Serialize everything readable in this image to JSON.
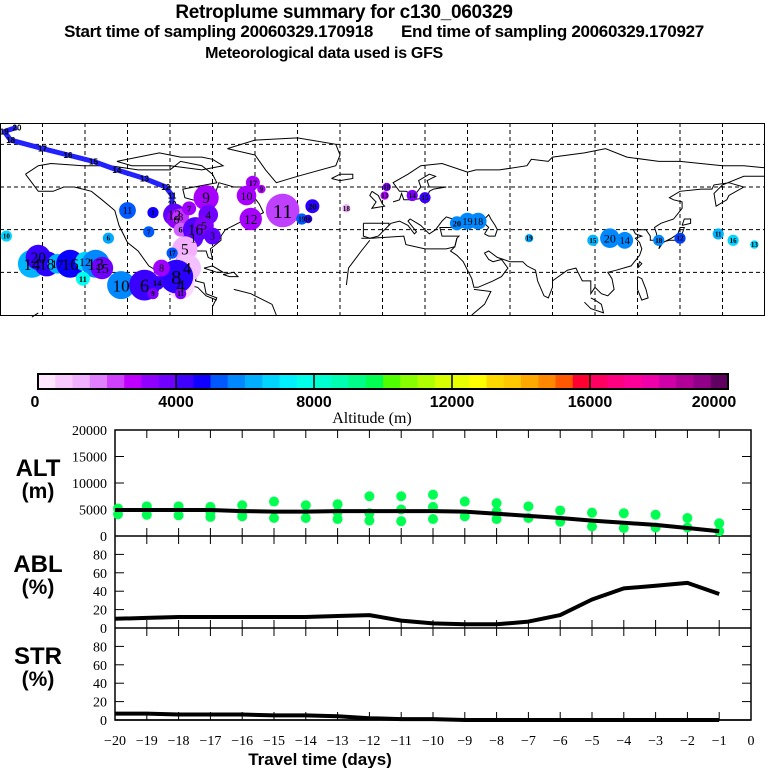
{
  "header": {
    "title": "Retroplume summary for c130_060329",
    "start_label": "Start time of sampling 20060329.170918",
    "end_label": "End time of sampling 20060329.170927",
    "met_label": "Meteorological data used is GFS"
  },
  "map": {
    "lon_range": [
      -180,
      180
    ],
    "lat_range": [
      0,
      90
    ],
    "grid_lon_step": 20,
    "grid_lat_step": 20,
    "trajectory": [
      {
        "day": 20,
        "lon": -172,
        "lat": 88
      },
      {
        "day": 19,
        "lon": -178,
        "lat": 86
      },
      {
        "day": 18,
        "lon": -175,
        "lat": 82
      },
      {
        "day": 17,
        "lon": -160,
        "lat": 78
      },
      {
        "day": 16,
        "lon": -148,
        "lat": 75
      },
      {
        "day": 15,
        "lon": -136,
        "lat": 72
      },
      {
        "day": 14,
        "lon": -125,
        "lat": 68
      },
      {
        "day": 13,
        "lon": -112,
        "lat": 64
      },
      {
        "day": 12,
        "lon": -102,
        "lat": 60
      },
      {
        "day": 11,
        "lon": -99,
        "lat": 56
      },
      {
        "day": 10,
        "lon": -99,
        "lat": 52
      },
      {
        "day": 9,
        "lon": -99,
        "lat": 47
      },
      {
        "day": 8,
        "lon": -96,
        "lat": 41
      },
      {
        "day": 7,
        "lon": -92,
        "lat": 36
      },
      {
        "day": 6,
        "lon": -89,
        "lat": 31
      }
    ],
    "plumes": [
      {
        "label": "10",
        "lon": -177,
        "lat": 37,
        "r": 4,
        "color": "#00d4ff"
      },
      {
        "label": "14",
        "lon": -165,
        "lat": 24,
        "r": 10,
        "color": "#00b4ff"
      },
      {
        "label": "20",
        "lon": -162,
        "lat": 27,
        "r": 9,
        "color": "#3a00ff"
      },
      {
        "label": "18",
        "lon": -158,
        "lat": 24,
        "r": 9,
        "color": "#2a00ff"
      },
      {
        "label": "17",
        "lon": -153,
        "lat": 24,
        "r": 7,
        "color": "#00b4ff"
      },
      {
        "label": "16",
        "lon": -147,
        "lat": 24,
        "r": 10,
        "color": "#0a00ff"
      },
      {
        "label": "12",
        "lon": -140,
        "lat": 25,
        "r": 7,
        "color": "#00d4ff"
      },
      {
        "label": "13",
        "lon": -135,
        "lat": 24,
        "r": 10,
        "color": "#0088ff"
      },
      {
        "label": "15",
        "lon": -132,
        "lat": 22,
        "r": 8,
        "color": "#7000ff"
      },
      {
        "label": "11",
        "lon": -141,
        "lat": 17,
        "r": 5,
        "color": "#00fff0"
      },
      {
        "label": "6",
        "lon": -129,
        "lat": 36,
        "r": 4,
        "color": "#00a8ff"
      },
      {
        "label": "11",
        "lon": -120,
        "lat": 49,
        "r": 6,
        "color": "#0058ff"
      },
      {
        "label": "10",
        "lon": -123,
        "lat": 14,
        "r": 10,
        "color": "#0088ff"
      },
      {
        "label": "6",
        "lon": -112,
        "lat": 14,
        "r": 11,
        "color": "#3a00ff"
      },
      {
        "label": "7",
        "lon": -110,
        "lat": 39,
        "r": 4,
        "color": "#0058ff"
      },
      {
        "label": "1",
        "lon": -108,
        "lat": 48,
        "r": 4,
        "color": "#1000ff"
      },
      {
        "label": "12",
        "lon": -98,
        "lat": 47,
        "r": 8,
        "color": "#6000ff"
      },
      {
        "label": "6",
        "lon": -97,
        "lat": 45,
        "r": 7,
        "color": "#9000ff"
      },
      {
        "label": "8",
        "lon": -95,
        "lat": 46,
        "r": 6,
        "color": "#c030ff"
      },
      {
        "label": "7",
        "lon": -91,
        "lat": 50,
        "r": 5,
        "color": "#a000ff"
      },
      {
        "label": "6",
        "lon": -95,
        "lat": 40,
        "r": 5,
        "color": "#d060ff"
      },
      {
        "label": "9",
        "lon": -83,
        "lat": 55,
        "r": 9,
        "color": "#a800ff"
      },
      {
        "label": "4",
        "lon": -82,
        "lat": 47,
        "r": 7,
        "color": "#7000ff"
      },
      {
        "label": "16",
        "lon": -88,
        "lat": 40,
        "r": 9,
        "color": "#5000ff"
      },
      {
        "label": "5",
        "lon": -84,
        "lat": 42,
        "r": 7,
        "color": "#8000ff"
      },
      {
        "label": "1",
        "lon": -89,
        "lat": 36,
        "r": 7,
        "color": "#6000ff"
      },
      {
        "label": "3",
        "lon": -80,
        "lat": 37,
        "r": 6,
        "color": "#6000ff"
      },
      {
        "label": "5",
        "lon": -93,
        "lat": 31,
        "r": 9,
        "color": "#f4b0ff"
      },
      {
        "label": "4",
        "lon": -92,
        "lat": 22,
        "r": 10,
        "color": "#f4c0ff"
      },
      {
        "label": "4",
        "lon": -95,
        "lat": 14,
        "r": 10,
        "color": "#ffd8ff"
      },
      {
        "label": "8",
        "lon": -97,
        "lat": 18,
        "r": 12,
        "color": "#2a00ff"
      },
      {
        "label": "8",
        "lon": -104,
        "lat": 22,
        "r": 6,
        "color": "#a000ff"
      },
      {
        "label": "14",
        "lon": -106,
        "lat": 15,
        "r": 5,
        "color": "#3a00ff"
      },
      {
        "label": "9",
        "lon": -108,
        "lat": 10,
        "r": 4,
        "color": "#8000ff"
      },
      {
        "label": "11",
        "lon": -95,
        "lat": 10,
        "r": 4,
        "color": "#8000ff"
      },
      {
        "label": "17",
        "lon": -99,
        "lat": 29,
        "r": 4,
        "color": "#0058ff"
      },
      {
        "label": "17",
        "lon": -61,
        "lat": 62,
        "r": 5,
        "color": "#a800ff"
      },
      {
        "label": "10",
        "lon": -64,
        "lat": 56,
        "r": 7,
        "color": "#a800ff"
      },
      {
        "label": "9",
        "lon": -57,
        "lat": 59,
        "r": 3,
        "color": "#b000ff"
      },
      {
        "label": "12",
        "lon": -62,
        "lat": 45,
        "r": 8,
        "color": "#a800ff"
      },
      {
        "label": "11",
        "lon": -47,
        "lat": 49,
        "r": 12,
        "color": "#c040ff"
      },
      {
        "label": "19",
        "lon": -38,
        "lat": 45,
        "r": 4,
        "color": "#0058ff"
      },
      {
        "label": "16",
        "lon": -35,
        "lat": 45,
        "r": 3,
        "color": "#2a00ff"
      },
      {
        "label": "20",
        "lon": -33,
        "lat": 51,
        "r": 5,
        "color": "#2a00ff"
      },
      {
        "label": "18",
        "lon": -17,
        "lat": 50,
        "r": 3,
        "color": "#f0a8ff"
      },
      {
        "label": "18",
        "lon": 2,
        "lat": 60,
        "r": 3,
        "color": "#8000ff"
      },
      {
        "label": "13",
        "lon": 1,
        "lat": 56,
        "r": 3,
        "color": "#b000ff"
      },
      {
        "label": "14",
        "lon": 14,
        "lat": 56,
        "r": 4,
        "color": "#8000ff"
      },
      {
        "label": "15",
        "lon": 20,
        "lat": 55,
        "r": 4,
        "color": "#3a00ff"
      },
      {
        "label": "20",
        "lon": 35,
        "lat": 43,
        "r": 5,
        "color": "#0088ff"
      },
      {
        "label": "19",
        "lon": 40,
        "lat": 44,
        "r": 6,
        "color": "#0088ff"
      },
      {
        "label": "18",
        "lon": 45,
        "lat": 44,
        "r": 6,
        "color": "#0088ff"
      },
      {
        "label": "19",
        "lon": 69,
        "lat": 36,
        "r": 3,
        "color": "#00a8ff"
      },
      {
        "label": "15",
        "lon": 99,
        "lat": 35,
        "r": 4,
        "color": "#00b4ff"
      },
      {
        "label": "20",
        "lon": 107,
        "lat": 36,
        "r": 7,
        "color": "#0088ff"
      },
      {
        "label": "14",
        "lon": 114,
        "lat": 35,
        "r": 6,
        "color": "#0088ff"
      },
      {
        "label": "18",
        "lon": 130,
        "lat": 35,
        "r": 4,
        "color": "#0088ff"
      },
      {
        "label": "12",
        "lon": 140,
        "lat": 36,
        "r": 4,
        "color": "#0040ff"
      },
      {
        "label": "11",
        "lon": 158,
        "lat": 38,
        "r": 4,
        "color": "#00b4ff"
      },
      {
        "label": "16",
        "lon": 165,
        "lat": 35,
        "r": 4,
        "color": "#00d4ff"
      },
      {
        "label": "13",
        "lon": 175,
        "lat": 33,
        "r": 3,
        "color": "#00d4ff"
      }
    ]
  },
  "colorbar": {
    "label": "Altitude (m)",
    "min": 0,
    "max": 20000,
    "tick_labels": [
      "0",
      "4000",
      "8000",
      "12000",
      "16000",
      "20000"
    ],
    "colors": [
      "#ffe8ff",
      "#f8c8ff",
      "#f0b0ff",
      "#e080ff",
      "#d040ff",
      "#c000ff",
      "#9000ff",
      "#7000ff",
      "#4000ff",
      "#1000ff",
      "#0058ff",
      "#0088ff",
      "#00b0ff",
      "#00d4ff",
      "#00f0ff",
      "#00ffe8",
      "#00ffd0",
      "#00ffb0",
      "#00ff88",
      "#00ff50",
      "#50ff00",
      "#88ff00",
      "#b0ff00",
      "#d8ff00",
      "#e8ff00",
      "#ffff00",
      "#ffd800",
      "#ffc800",
      "#ffa800",
      "#ff8800",
      "#ff5800",
      "#ff0030",
      "#ff0060",
      "#ff0080",
      "#ff0098",
      "#f000a8",
      "#d000a8",
      "#b00098",
      "#900088",
      "#600060"
    ]
  },
  "chart_data": {
    "type": "line",
    "xlabel": "Travel time (days)",
    "x_tick_labels": [
      "−20",
      "−19",
      "−18",
      "−17",
      "−16",
      "−15",
      "−14",
      "−13",
      "−12",
      "−11",
      "−10",
      "−9",
      "−8",
      "−7",
      "−6",
      "−5",
      "−4",
      "−3",
      "−2",
      "−1",
      "0"
    ],
    "xlim": [
      -20,
      0
    ],
    "panels": [
      {
        "name": "ALT",
        "ylabel": "ALT",
        "yunit": "(m)",
        "ylim": [
          0,
          20000
        ],
        "y_tick_labels": [
          "0",
          "5000",
          "10000",
          "15000",
          "20000"
        ],
        "y_ticks": [
          0,
          5000,
          10000,
          15000,
          20000
        ],
        "line": {
          "x": [
            -20,
            -19,
            -18,
            -17,
            -16,
            -15,
            -14,
            -13,
            -12,
            -11,
            -10,
            -9,
            -8,
            -7,
            -6,
            -5,
            -4,
            -3,
            -2,
            -1
          ],
          "y": [
            4900,
            4900,
            4900,
            4900,
            4700,
            4600,
            4600,
            4700,
            4700,
            4700,
            4700,
            4600,
            4200,
            3800,
            3400,
            2900,
            2500,
            2100,
            1500,
            900
          ]
        },
        "scatter": {
          "color": "#00ff50",
          "points": [
            {
              "x": -20,
              "y": 5200
            },
            {
              "x": -20,
              "y": 4100
            },
            {
              "x": -19,
              "y": 5600
            },
            {
              "x": -19,
              "y": 4000
            },
            {
              "x": -18,
              "y": 5600
            },
            {
              "x": -18,
              "y": 3900
            },
            {
              "x": -17,
              "y": 5500
            },
            {
              "x": -17,
              "y": 3600
            },
            {
              "x": -17,
              "y": 4500
            },
            {
              "x": -16,
              "y": 5800
            },
            {
              "x": -16,
              "y": 4500
            },
            {
              "x": -16,
              "y": 3700
            },
            {
              "x": -15,
              "y": 6500
            },
            {
              "x": -15,
              "y": 3400
            },
            {
              "x": -14,
              "y": 5800
            },
            {
              "x": -14,
              "y": 3400
            },
            {
              "x": -13,
              "y": 6000
            },
            {
              "x": -13,
              "y": 4500
            },
            {
              "x": -13,
              "y": 3200
            },
            {
              "x": -12,
              "y": 7500
            },
            {
              "x": -12,
              "y": 4300
            },
            {
              "x": -12,
              "y": 2900
            },
            {
              "x": -11,
              "y": 7500
            },
            {
              "x": -11,
              "y": 5000
            },
            {
              "x": -11,
              "y": 2800
            },
            {
              "x": -10,
              "y": 7800
            },
            {
              "x": -10,
              "y": 5500
            },
            {
              "x": -10,
              "y": 3200
            },
            {
              "x": -9,
              "y": 6500
            },
            {
              "x": -9,
              "y": 3700
            },
            {
              "x": -8,
              "y": 6200
            },
            {
              "x": -8,
              "y": 4600
            },
            {
              "x": -8,
              "y": 3200
            },
            {
              "x": -7,
              "y": 5600
            },
            {
              "x": -7,
              "y": 3400
            },
            {
              "x": -6,
              "y": 4800
            },
            {
              "x": -6,
              "y": 2700
            },
            {
              "x": -5,
              "y": 4400
            },
            {
              "x": -5,
              "y": 1800
            },
            {
              "x": -4,
              "y": 4300
            },
            {
              "x": -4,
              "y": 1500
            },
            {
              "x": -3,
              "y": 4000
            },
            {
              "x": -3,
              "y": 1600
            },
            {
              "x": -2,
              "y": 3400
            },
            {
              "x": -2,
              "y": 1600
            },
            {
              "x": -1,
              "y": 2400
            },
            {
              "x": -1,
              "y": 900
            }
          ]
        }
      },
      {
        "name": "ABL",
        "ylabel": "ABL",
        "yunit": "(%)",
        "ylim": [
          0,
          100
        ],
        "y_tick_labels": [
          "0",
          "20",
          "40",
          "60",
          "80"
        ],
        "y_ticks": [
          0,
          20,
          40,
          60,
          80
        ],
        "line": {
          "x": [
            -20,
            -19,
            -18,
            -17,
            -16,
            -15,
            -14,
            -13,
            -12,
            -11,
            -10,
            -9,
            -8,
            -7,
            -6,
            -5,
            -4,
            -3,
            -2,
            -1
          ],
          "y": [
            10,
            11,
            12,
            12,
            12,
            12,
            12,
            13,
            14,
            8,
            5,
            4,
            4,
            7,
            14,
            31,
            43,
            46,
            49,
            37
          ]
        }
      },
      {
        "name": "STR",
        "ylabel": "STR",
        "yunit": "(%)",
        "ylim": [
          0,
          100
        ],
        "y_tick_labels": [
          "0",
          "20",
          "40",
          "60",
          "80"
        ],
        "y_ticks": [
          0,
          20,
          40,
          60,
          80
        ],
        "line": {
          "x": [
            -20,
            -19,
            -18,
            -17,
            -16,
            -15,
            -14,
            -13,
            -12,
            -11,
            -10,
            -9,
            -8,
            -7,
            -6,
            -5,
            -4,
            -3,
            -2,
            -1
          ],
          "y": [
            7,
            7,
            6,
            6,
            6,
            5,
            5,
            4,
            2,
            1,
            1,
            0,
            0,
            0,
            0,
            0,
            0,
            0,
            0,
            0
          ]
        }
      }
    ]
  }
}
